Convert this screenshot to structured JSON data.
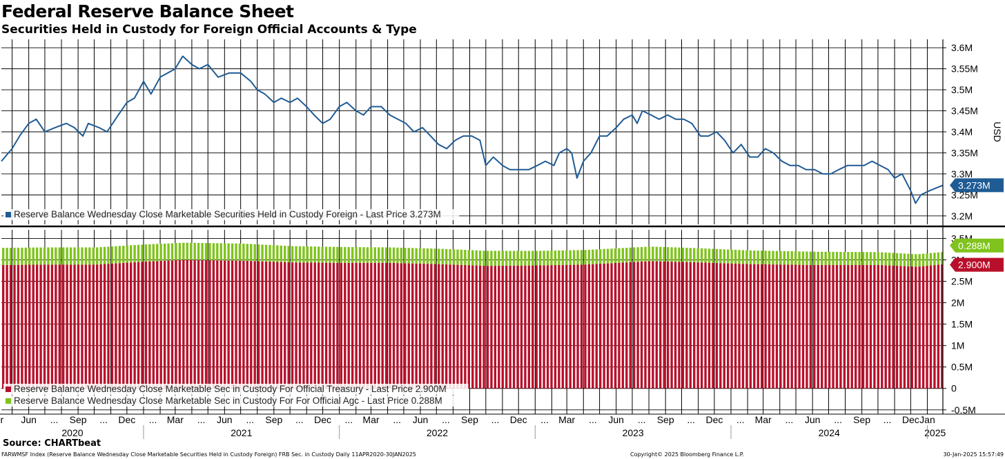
{
  "title": "Federal Reserve Balance Sheet",
  "subtitle": "Securities Held in Custody for Foreign Official Accounts & Type",
  "source": "Source: CHARTbeat",
  "footer_left": "FARWMSF Index (Reserve Balance Wednesday Close Marketable Securities Held in Custody Foreign) FRB Sec. in Custody  Daily 11APR2020-30JAN2025",
  "footer_mid": "Copyright© 2025 Bloomberg Finance L.P.",
  "footer_right": "30-Jan-2025 15:57:49",
  "colors": {
    "line": "#1f5b94",
    "treasury": "#b8102a",
    "agency": "#7fc31c"
  },
  "chart_data": [
    {
      "type": "line",
      "ylabel": "USD",
      "ylim": [
        3.18,
        3.62
      ],
      "yticks": [
        "3.2M",
        "3.25M",
        "3.3M",
        "3.35M",
        "3.4M",
        "3.45M",
        "3.5M",
        "3.55M",
        "3.6M"
      ],
      "legend": "Reserve Balance Wednesday Close Marketable Securities Held in Custody Foreign - Last Price 3.273M",
      "last_label": "3.273M",
      "series": [
        {
          "name": "Reserve Balance Wednesday Close Marketable Securities Held in Custody Foreign",
          "points": [
            [
              "2020-04-11",
              3.33
            ],
            [
              "2020-05-01",
              3.36
            ],
            [
              "2020-05-15",
              3.39
            ],
            [
              "2020-06-01",
              3.42
            ],
            [
              "2020-06-15",
              3.43
            ],
            [
              "2020-07-01",
              3.4
            ],
            [
              "2020-07-20",
              3.41
            ],
            [
              "2020-08-10",
              3.42
            ],
            [
              "2020-08-25",
              3.41
            ],
            [
              "2020-09-10",
              3.39
            ],
            [
              "2020-09-20",
              3.42
            ],
            [
              "2020-10-10",
              3.41
            ],
            [
              "2020-10-25",
              3.4
            ],
            [
              "2020-11-15",
              3.44
            ],
            [
              "2020-12-01",
              3.47
            ],
            [
              "2020-12-15",
              3.48
            ],
            [
              "2021-01-01",
              3.52
            ],
            [
              "2021-01-15",
              3.49
            ],
            [
              "2021-02-01",
              3.53
            ],
            [
              "2021-02-15",
              3.54
            ],
            [
              "2021-03-01",
              3.55
            ],
            [
              "2021-03-15",
              3.58
            ],
            [
              "2021-04-01",
              3.56
            ],
            [
              "2021-04-15",
              3.55
            ],
            [
              "2021-05-01",
              3.56
            ],
            [
              "2021-05-20",
              3.53
            ],
            [
              "2021-06-10",
              3.54
            ],
            [
              "2021-07-01",
              3.54
            ],
            [
              "2021-07-20",
              3.52
            ],
            [
              "2021-08-01",
              3.5
            ],
            [
              "2021-08-15",
              3.49
            ],
            [
              "2021-09-01",
              3.47
            ],
            [
              "2021-09-15",
              3.48
            ],
            [
              "2021-10-01",
              3.47
            ],
            [
              "2021-10-15",
              3.48
            ],
            [
              "2021-11-01",
              3.46
            ],
            [
              "2021-11-15",
              3.44
            ],
            [
              "2021-12-01",
              3.42
            ],
            [
              "2021-12-15",
              3.43
            ],
            [
              "2022-01-01",
              3.46
            ],
            [
              "2022-01-15",
              3.47
            ],
            [
              "2022-02-01",
              3.45
            ],
            [
              "2022-02-15",
              3.44
            ],
            [
              "2022-03-01",
              3.46
            ],
            [
              "2022-03-20",
              3.46
            ],
            [
              "2022-04-05",
              3.44
            ],
            [
              "2022-04-20",
              3.43
            ],
            [
              "2022-05-05",
              3.42
            ],
            [
              "2022-05-20",
              3.4
            ],
            [
              "2022-06-05",
              3.41
            ],
            [
              "2022-06-20",
              3.39
            ],
            [
              "2022-07-05",
              3.37
            ],
            [
              "2022-07-20",
              3.36
            ],
            [
              "2022-08-05",
              3.38
            ],
            [
              "2022-08-20",
              3.39
            ],
            [
              "2022-09-05",
              3.39
            ],
            [
              "2022-09-20",
              3.38
            ],
            [
              "2022-10-01",
              3.32
            ],
            [
              "2022-10-15",
              3.34
            ],
            [
              "2022-11-01",
              3.32
            ],
            [
              "2022-11-15",
              3.31
            ],
            [
              "2022-12-01",
              3.31
            ],
            [
              "2022-12-20",
              3.31
            ],
            [
              "2023-01-05",
              3.32
            ],
            [
              "2023-01-20",
              3.33
            ],
            [
              "2023-02-05",
              3.32
            ],
            [
              "2023-02-15",
              3.35
            ],
            [
              "2023-03-01",
              3.36
            ],
            [
              "2023-03-10",
              3.35
            ],
            [
              "2023-03-20",
              3.29
            ],
            [
              "2023-04-01",
              3.33
            ],
            [
              "2023-04-15",
              3.35
            ],
            [
              "2023-05-01",
              3.39
            ],
            [
              "2023-05-15",
              3.39
            ],
            [
              "2023-06-01",
              3.41
            ],
            [
              "2023-06-15",
              3.43
            ],
            [
              "2023-07-01",
              3.44
            ],
            [
              "2023-07-10",
              3.42
            ],
            [
              "2023-07-20",
              3.45
            ],
            [
              "2023-08-05",
              3.44
            ],
            [
              "2023-08-20",
              3.43
            ],
            [
              "2023-09-05",
              3.44
            ],
            [
              "2023-09-20",
              3.43
            ],
            [
              "2023-10-05",
              3.43
            ],
            [
              "2023-10-20",
              3.42
            ],
            [
              "2023-11-05",
              3.39
            ],
            [
              "2023-11-20",
              3.39
            ],
            [
              "2023-12-05",
              3.4
            ],
            [
              "2023-12-20",
              3.38
            ],
            [
              "2024-01-05",
              3.35
            ],
            [
              "2024-01-20",
              3.37
            ],
            [
              "2024-02-05",
              3.34
            ],
            [
              "2024-02-20",
              3.34
            ],
            [
              "2024-03-05",
              3.36
            ],
            [
              "2024-03-20",
              3.35
            ],
            [
              "2024-04-05",
              3.33
            ],
            [
              "2024-04-20",
              3.32
            ],
            [
              "2024-05-05",
              3.32
            ],
            [
              "2024-05-20",
              3.31
            ],
            [
              "2024-06-05",
              3.31
            ],
            [
              "2024-06-20",
              3.3
            ],
            [
              "2024-07-05",
              3.3
            ],
            [
              "2024-07-20",
              3.31
            ],
            [
              "2024-08-05",
              3.32
            ],
            [
              "2024-08-20",
              3.32
            ],
            [
              "2024-09-05",
              3.32
            ],
            [
              "2024-09-20",
              3.33
            ],
            [
              "2024-10-05",
              3.32
            ],
            [
              "2024-10-20",
              3.31
            ],
            [
              "2024-11-01",
              3.29
            ],
            [
              "2024-11-15",
              3.3
            ],
            [
              "2024-12-01",
              3.26
            ],
            [
              "2024-12-10",
              3.23
            ],
            [
              "2024-12-20",
              3.25
            ],
            [
              "2025-01-05",
              3.26
            ],
            [
              "2025-01-30",
              3.273
            ]
          ]
        }
      ]
    },
    {
      "type": "bar",
      "stacked": true,
      "ylim": [
        -0.6,
        3.7
      ],
      "yticks": [
        "-0.5M",
        "0",
        "0.5M",
        "1M",
        "1.5M",
        "2M",
        "2.5M",
        "3M",
        "3.5M"
      ],
      "series": [
        {
          "name": "Reserve Balance Wednesday Close Marketable Sec in Custody For Official Treasury",
          "legend": "Reserve Balance Wednesday Close Marketable Sec in Custody For Official Treasury - Last Price 2.900M",
          "last_label": "2.900M",
          "points": [
            [
              "2020-04-11",
              2.88
            ],
            [
              "2020-07-01",
              2.89
            ],
            [
              "2020-10-01",
              2.89
            ],
            [
              "2021-01-01",
              2.96
            ],
            [
              "2021-03-15",
              3.0
            ],
            [
              "2021-07-01",
              2.98
            ],
            [
              "2021-10-01",
              2.94
            ],
            [
              "2022-01-01",
              2.93
            ],
            [
              "2022-04-01",
              2.93
            ],
            [
              "2022-07-01",
              2.9
            ],
            [
              "2022-10-01",
              2.86
            ],
            [
              "2023-01-01",
              2.87
            ],
            [
              "2023-04-01",
              2.89
            ],
            [
              "2023-08-01",
              2.97
            ],
            [
              "2023-11-01",
              2.94
            ],
            [
              "2024-02-01",
              2.9
            ],
            [
              "2024-06-01",
              2.88
            ],
            [
              "2024-10-01",
              2.88
            ],
            [
              "2024-12-10",
              2.84
            ],
            [
              "2025-01-30",
              2.9
            ]
          ]
        },
        {
          "name": "Reserve Balance Wednesday Close Marketable Sec in Custody For For Official Agc",
          "legend": "Reserve Balance Wednesday Close Marketable Sec in Custody For For Official Agc - Last Price 0.288M",
          "last_label": "0.288M",
          "points": [
            [
              "2020-04-11",
              0.4
            ],
            [
              "2020-07-01",
              0.4
            ],
            [
              "2020-10-01",
              0.4
            ],
            [
              "2021-01-01",
              0.4
            ],
            [
              "2021-03-15",
              0.4
            ],
            [
              "2021-07-01",
              0.4
            ],
            [
              "2021-10-01",
              0.38
            ],
            [
              "2022-01-01",
              0.37
            ],
            [
              "2022-04-01",
              0.36
            ],
            [
              "2022-07-01",
              0.36
            ],
            [
              "2022-10-01",
              0.35
            ],
            [
              "2023-01-01",
              0.34
            ],
            [
              "2023-04-01",
              0.34
            ],
            [
              "2023-08-01",
              0.34
            ],
            [
              "2023-11-01",
              0.33
            ],
            [
              "2024-02-01",
              0.32
            ],
            [
              "2024-06-01",
              0.31
            ],
            [
              "2024-10-01",
              0.3
            ],
            [
              "2024-12-10",
              0.29
            ],
            [
              "2025-01-30",
              0.288
            ]
          ]
        }
      ]
    }
  ],
  "xaxis": {
    "range": [
      "2020-04-11",
      "2025-01-30"
    ],
    "months": [
      [
        "Apr",
        "2020-04-01"
      ],
      [
        "Jun",
        "2020-06-01"
      ],
      [
        "...",
        "2020-07-16"
      ],
      [
        "Sep",
        "2020-09-01"
      ],
      [
        "...",
        "2020-10-16"
      ],
      [
        "Dec",
        "2020-12-01"
      ],
      [
        "...",
        "2021-01-16"
      ],
      [
        "Mar",
        "2021-03-01"
      ],
      [
        "...",
        "2021-04-16"
      ],
      [
        "Jun",
        "2021-06-01"
      ],
      [
        "...",
        "2021-07-16"
      ],
      [
        "Sep",
        "2021-09-01"
      ],
      [
        "...",
        "2021-10-16"
      ],
      [
        "Dec",
        "2021-12-01"
      ],
      [
        "...",
        "2022-01-16"
      ],
      [
        "Mar",
        "2022-03-01"
      ],
      [
        "...",
        "2022-04-16"
      ],
      [
        "Jun",
        "2022-06-01"
      ],
      [
        "...",
        "2022-07-16"
      ],
      [
        "Sep",
        "2022-09-01"
      ],
      [
        "...",
        "2022-10-16"
      ],
      [
        "Dec",
        "2022-12-01"
      ],
      [
        "...",
        "2023-01-16"
      ],
      [
        "Mar",
        "2023-03-01"
      ],
      [
        "...",
        "2023-04-16"
      ],
      [
        "Jun",
        "2023-06-01"
      ],
      [
        "...",
        "2023-07-16"
      ],
      [
        "Sep",
        "2023-09-01"
      ],
      [
        "...",
        "2023-10-16"
      ],
      [
        "Dec",
        "2023-12-01"
      ],
      [
        "...",
        "2024-01-16"
      ],
      [
        "Mar",
        "2024-03-01"
      ],
      [
        "...",
        "2024-04-16"
      ],
      [
        "Jun",
        "2024-06-01"
      ],
      [
        "...",
        "2024-07-16"
      ],
      [
        "Sep",
        "2024-09-01"
      ],
      [
        "...",
        "2024-10-16"
      ],
      [
        "Dec",
        "2024-12-01"
      ],
      [
        "Jan",
        "2025-01-01"
      ]
    ],
    "years": [
      [
        "2020",
        "2020-04-11",
        "2021-01-01"
      ],
      [
        "2021",
        "2021-01-01",
        "2022-01-01"
      ],
      [
        "2022",
        "2022-01-01",
        "2023-01-01"
      ],
      [
        "2023",
        "2023-01-01",
        "2024-01-01"
      ],
      [
        "2024",
        "2024-01-01",
        "2025-01-01"
      ],
      [
        "2025",
        "2025-01-01",
        "2025-01-30"
      ]
    ]
  }
}
